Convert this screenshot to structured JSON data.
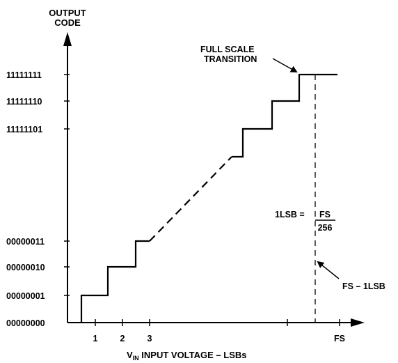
{
  "diagram": {
    "y_axis_title": [
      "OUTPUT",
      "CODE"
    ],
    "y_codes": [
      "11111111",
      "11111110",
      "11111101",
      "00000011",
      "00000010",
      "00000001",
      "00000000"
    ],
    "x_ticks": [
      "1",
      "2",
      "3",
      "FS"
    ],
    "x_axis_title": {
      "prefix": "V",
      "subscript": "IN",
      "rest": " INPUT VOLTAGE – LSBs"
    },
    "annotations": {
      "full_scale_transition": [
        "FULL SCALE",
        "TRANSITION"
      ],
      "lsb_prefix": "1LSB =",
      "lsb_numerator": "FS",
      "lsb_denominator": "256",
      "fs_minus_lsb": "FS – 1LSB"
    }
  }
}
